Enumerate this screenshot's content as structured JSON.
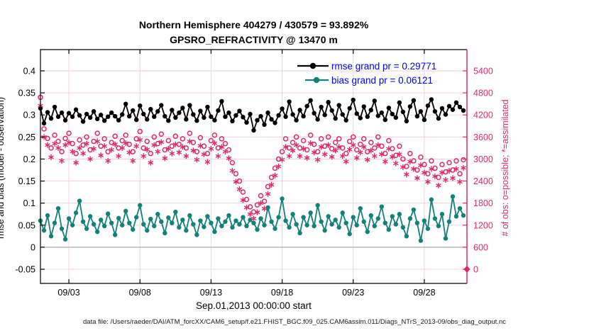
{
  "title": {
    "line1": "Northern Hemisphere 404279 / 430579 = 93.892%",
    "line2": "GPSRO_REFRACTIVITY @ 13470 m"
  },
  "legend": {
    "rmse_label": "rmse grand pr = 0.29771",
    "bias_label": "bias grand pr = 0.06121",
    "text_color": "#0000f0"
  },
  "footer": "data file: /Users/raeder/DAI/ATM_forcXX/CAM6_setup/f.e21.FHIST_BGC.f09_025.CAM6assim.011/Diags_NTrS_2013-09/obs_diag_output.nc",
  "colors": {
    "rmse": "#000000",
    "bias": "#128278",
    "obs": "#df2a68",
    "grid": "#f4ccd5",
    "zero_line": "#b5b5b5",
    "axis_black": "#000000"
  },
  "chart_data": {
    "type": "line",
    "title": "Northern Hemisphere 404279 / 430579 = 93.892% | GPSRO_REFRACTIVITY @ 13470 m",
    "grid": true,
    "legend_position": "top-right inside, no box",
    "x_axis": {
      "label": "Sep.01,2013 00:00:00 start",
      "tick_days": [
        2,
        7,
        12,
        17,
        22,
        27
      ],
      "tick_labels": [
        "09/03",
        "09/08",
        "09/13",
        "09/18",
        "09/23",
        "09/28"
      ],
      "range_days": [
        0,
        30
      ],
      "step_days": 0.25
    },
    "left_axis": {
      "label": "rmse and bias (model - observation)",
      "tick_values": [
        0.4,
        0.35,
        0.3,
        0.25,
        0.2,
        0.15,
        0.1,
        0.05,
        0,
        -0.05
      ],
      "tick_labels": [
        "0.4",
        "0.35",
        "0.3",
        "0.25",
        "0.2",
        "0.15",
        "0.1",
        "0.05",
        "0",
        "-0.05"
      ],
      "display_range": [
        -0.0821,
        0.4482
      ]
    },
    "right_axis": {
      "label": "# of obs: o=possible; *=assimilated",
      "tick_values": [
        5400,
        4800,
        4200,
        3600,
        3000,
        2400,
        1800,
        1200,
        600,
        0
      ],
      "tick_labels": [
        "5400",
        "4800",
        "4200",
        "3600",
        "3000",
        "2400",
        "1800",
        "1200",
        "600",
        "0"
      ],
      "aligned_with_left": "0 aligns with -0.05, 5400 aligns with 0.4"
    },
    "series": [
      {
        "name": "rmse",
        "axis": "left",
        "marker": "filled-circle",
        "line": true,
        "grand_value": 0.29771,
        "values": [
          0.315,
          0.281,
          0.306,
          0.292,
          0.318,
          0.296,
          0.305,
          0.288,
          0.304,
          0.296,
          0.312,
          0.299,
          0.285,
          0.302,
          0.294,
          0.308,
          0.291,
          0.3,
          0.287,
          0.296,
          0.305,
          0.297,
          0.288,
          0.301,
          0.325,
          0.297,
          0.31,
          0.289,
          0.321,
          0.302,
          0.29,
          0.313,
          0.296,
          0.308,
          0.322,
          0.297,
          0.287,
          0.311,
          0.294,
          0.305,
          0.316,
          0.29,
          0.322,
          0.301,
          0.287,
          0.309,
          0.294,
          0.318,
          0.296,
          0.288,
          0.31,
          0.331,
          0.296,
          0.305,
          0.286,
          0.299,
          0.309,
          0.295,
          0.283,
          0.302,
          0.265,
          0.288,
          0.297,
          0.278,
          0.305,
          0.29,
          0.282,
          0.299,
          0.314,
          0.296,
          0.33,
          0.301,
          0.288,
          0.311,
          0.297,
          0.32,
          0.333,
          0.304,
          0.29,
          0.318,
          0.3,
          0.329,
          0.31,
          0.292,
          0.322,
          0.301,
          0.288,
          0.315,
          0.334,
          0.303,
          0.293,
          0.319,
          0.296,
          0.311,
          0.332,
          0.298,
          0.305,
          0.289,
          0.316,
          0.302,
          0.294,
          0.328,
          0.307,
          0.286,
          0.319,
          0.333,
          0.297,
          0.308,
          0.289,
          0.321,
          0.335,
          0.308,
          0.292,
          0.315,
          0.301,
          0.32,
          0.312,
          0.328,
          0.318,
          0.31
        ]
      },
      {
        "name": "bias",
        "axis": "left",
        "marker": "filled-circle",
        "line": true,
        "grand_value": 0.06121,
        "values": [
          0.06,
          0.038,
          0.072,
          0.025,
          0.055,
          0.088,
          0.042,
          0.018,
          0.065,
          0.05,
          0.078,
          0.105,
          0.058,
          0.042,
          0.07,
          0.052,
          0.035,
          0.062,
          0.048,
          0.076,
          0.055,
          0.028,
          0.066,
          0.05,
          0.082,
          0.055,
          0.04,
          0.068,
          0.095,
          0.052,
          0.038,
          0.064,
          0.048,
          0.075,
          0.058,
          0.032,
          0.067,
          0.055,
          0.08,
          0.045,
          0.062,
          0.038,
          0.072,
          0.052,
          0.028,
          0.06,
          0.046,
          0.07,
          0.055,
          0.035,
          0.065,
          0.048,
          0.058,
          0.072,
          0.045,
          0.06,
          0.052,
          0.068,
          0.048,
          0.062,
          0.055,
          0.04,
          0.065,
          0.05,
          0.09,
          0.058,
          0.042,
          0.068,
          0.11,
          0.06,
          0.045,
          0.075,
          0.052,
          0.032,
          0.068,
          0.05,
          0.078,
          0.048,
          0.095,
          0.058,
          0.038,
          0.07,
          0.052,
          0.062,
          0.045,
          0.078,
          0.055,
          0.03,
          0.068,
          0.05,
          0.088,
          0.058,
          0.035,
          0.072,
          0.048,
          0.065,
          0.092,
          0.055,
          0.04,
          0.07,
          0.052,
          0.075,
          0.045,
          0.025,
          0.065,
          0.085,
          0.055,
          0.015,
          0.06,
          0.042,
          0.108,
          0.065,
          0.048,
          0.075,
          0.02,
          0.058,
          0.115,
          0.07,
          0.088,
          0.072
        ]
      },
      {
        "name": "possible",
        "axis": "right",
        "marker": "open-circle",
        "line": false,
        "values": [
          4680,
          3820,
          3560,
          3300,
          3650,
          3480,
          3200,
          3560,
          3700,
          3420,
          3150,
          3520,
          3380,
          3600,
          3250,
          3480,
          3700,
          3350,
          3550,
          3200,
          3450,
          3620,
          3300,
          3500,
          3650,
          3400,
          3200,
          3550,
          3750,
          3300,
          3480,
          3150,
          3600,
          3420,
          3680,
          3250,
          3500,
          3350,
          3620,
          3400,
          3550,
          3300,
          3700,
          3450,
          3200,
          3580,
          3350,
          3150,
          3500,
          3650,
          3300,
          3550,
          3420,
          3250,
          2900,
          2600,
          2400,
          2100,
          1900,
          1700,
          1560,
          1750,
          2000,
          1850,
          2250,
          2500,
          2750,
          3000,
          3200,
          3550,
          3300,
          3450,
          3600,
          3300,
          3500,
          3250,
          3650,
          3400,
          3200,
          3550,
          3350,
          3600,
          3280,
          3450,
          3550,
          3300,
          3150,
          3480,
          3600,
          3250,
          3400,
          3550,
          3200,
          3450,
          3300,
          3600,
          3350,
          3150,
          3500,
          3280,
          3100,
          3350,
          3000,
          2800,
          3150,
          2950,
          2700,
          3050,
          2850,
          2600,
          2950,
          2750,
          2500,
          2850,
          2650,
          2900,
          2700,
          2950,
          2600,
          2980
        ]
      },
      {
        "name": "assimilated",
        "axis": "right",
        "marker": "asterisk",
        "line": false,
        "values": [
          4450,
          3600,
          3380,
          3050,
          3420,
          3300,
          2950,
          3380,
          3450,
          3200,
          2900,
          3300,
          3150,
          3420,
          3000,
          3280,
          3480,
          3100,
          3350,
          2950,
          3250,
          3400,
          3080,
          3300,
          3430,
          3180,
          2950,
          3350,
          3520,
          3080,
          3260,
          2900,
          3380,
          3200,
          3460,
          3020,
          3280,
          3150,
          3400,
          3180,
          3330,
          3080,
          3480,
          3230,
          2980,
          3360,
          3130,
          2920,
          3280,
          3430,
          3080,
          3330,
          3200,
          3020,
          2680,
          2380,
          2180,
          1880,
          1680,
          1500,
          1380,
          1550,
          1800,
          1650,
          2050,
          2300,
          2550,
          2800,
          2980,
          3330,
          3080,
          3230,
          3380,
          3080,
          3280,
          3030,
          3430,
          3180,
          2980,
          3330,
          3130,
          3380,
          3060,
          3230,
          3330,
          3080,
          2930,
          3260,
          3380,
          3030,
          3180,
          3330,
          2980,
          3230,
          3080,
          3380,
          3130,
          2930,
          3280,
          3060,
          2880,
          3130,
          2780,
          2580,
          2930,
          2730,
          2480,
          2830,
          2630,
          2380,
          2730,
          2530,
          2280,
          2630,
          2430,
          2680,
          2480,
          2730,
          2380,
          2760
        ]
      }
    ],
    "final_marker": {
      "day": 30,
      "value": 0,
      "axis": "right",
      "shape": "filled-diamond"
    }
  }
}
